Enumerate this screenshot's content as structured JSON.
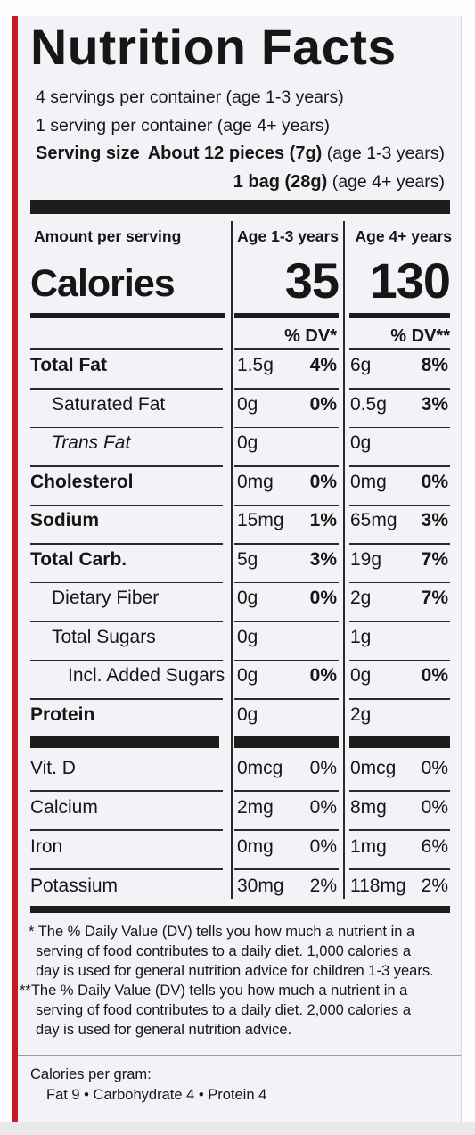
{
  "title": "Nutrition Facts",
  "servings": {
    "line1": "4 servings per container (age 1-3 years)",
    "line2": "1 serving per container (age 4+ years)",
    "size_label": "Serving size",
    "size1_amount": "About 12 pieces (7g)",
    "size1_age": "(age 1-3 years)",
    "size2_amount": "1 bag (28g)",
    "size2_age": "(age 4+ years)"
  },
  "header": {
    "amount_label": "Amount per serving",
    "col1": "Age 1-3 years",
    "col2": "Age 4+ years"
  },
  "calories": {
    "label": "Calories",
    "col1": "35",
    "col2": "130"
  },
  "dv_header": {
    "col1": "% DV*",
    "col2": "% DV**"
  },
  "rows": [
    {
      "label": "Total Fat",
      "style": "bold",
      "a1": "1.5g",
      "d1": "4%",
      "a2": "6g",
      "d2": "8%"
    },
    {
      "label": "Saturated Fat",
      "style": "indent",
      "a1": "0g",
      "d1": "0%",
      "a2": "0.5g",
      "d2": "3%"
    },
    {
      "label": "Trans Fat",
      "style": "indent-italic",
      "a1": "0g",
      "d1": "",
      "a2": "0g",
      "d2": ""
    },
    {
      "label": "Cholesterol",
      "style": "bold",
      "a1": "0mg",
      "d1": "0%",
      "a2": "0mg",
      "d2": "0%"
    },
    {
      "label": "Sodium",
      "style": "bold",
      "a1": "15mg",
      "d1": "1%",
      "a2": "65mg",
      "d2": "3%"
    },
    {
      "label": "Total Carb.",
      "style": "bold",
      "a1": "5g",
      "d1": "3%",
      "a2": "19g",
      "d2": "7%"
    },
    {
      "label": "Dietary Fiber",
      "style": "indent",
      "a1": "0g",
      "d1": "0%",
      "a2": "2g",
      "d2": "7%"
    },
    {
      "label": "Total Sugars",
      "style": "indent",
      "a1": "0g",
      "d1": "",
      "a2": "1g",
      "d2": ""
    },
    {
      "label": "Incl. Added Sugars",
      "style": "indent2",
      "a1": "0g",
      "d1": "0%",
      "a2": "0g",
      "d2": "0%"
    },
    {
      "label": "Protein",
      "style": "bold",
      "a1": "0g",
      "d1": "",
      "a2": "2g",
      "d2": ""
    }
  ],
  "vitamins": [
    {
      "label": "Vit. D",
      "a1": "0mcg",
      "d1": "0%",
      "a2": "0mcg",
      "d2": "0%"
    },
    {
      "label": "Calcium",
      "a1": "2mg",
      "d1": "0%",
      "a2": "8mg",
      "d2": "0%"
    },
    {
      "label": "Iron",
      "a1": "0mg",
      "d1": "0%",
      "a2": "1mg",
      "d2": "6%"
    },
    {
      "label": "Potassium",
      "a1": "30mg",
      "d1": "2%",
      "a2": "118mg",
      "d2": "2%"
    }
  ],
  "footnotes": {
    "f1_l1": "* The % Daily Value (DV) tells you how much a nutrient in a",
    "f1_l2": "serving of food contributes to a daily diet. 1,000 calories a",
    "f1_l3": "day is used for general nutrition advice for children 1-3 years.",
    "f2_l1": "**The % Daily Value (DV) tells you how much a nutrient in a",
    "f2_l2": "serving of food contributes to a daily diet. 2,000 calories a",
    "f2_l3": "day is used for general nutrition advice.",
    "cpg_l1": "Calories per gram:",
    "cpg_l2": "Fat 9 • Carbohydrate 4 • Protein 4"
  }
}
